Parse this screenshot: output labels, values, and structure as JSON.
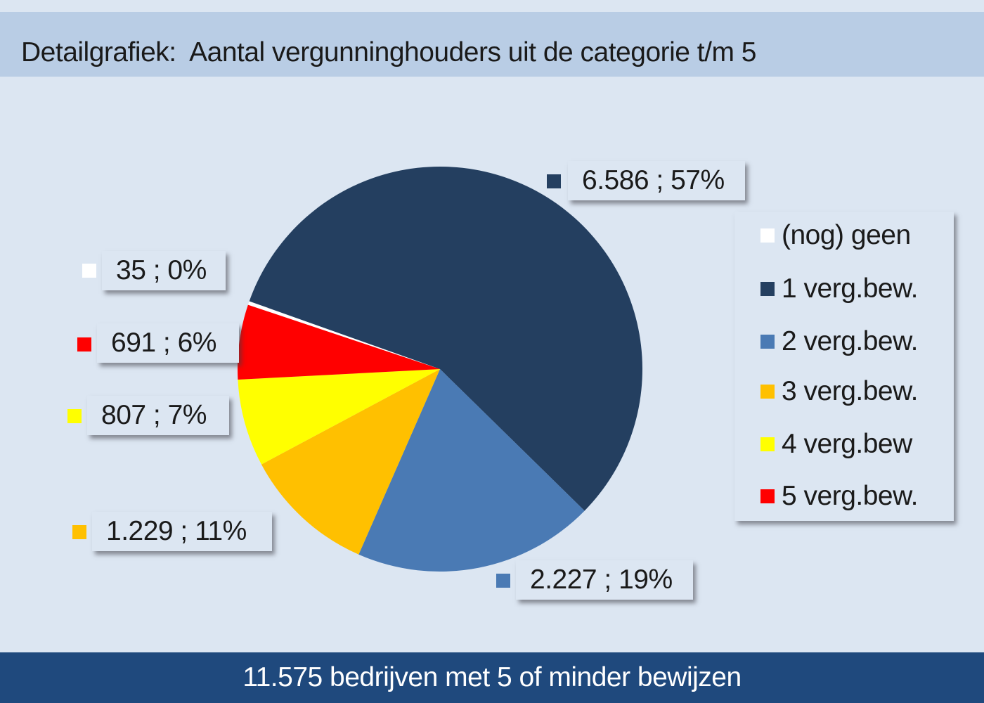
{
  "header": {
    "title": "Detailgrafiek:  Aantal vergunninghouders uit de categorie t/m 5"
  },
  "footer": {
    "summary": "11.575 bedrijven met 5 of minder bewijzen"
  },
  "colors": {
    "background": "#dce6f2",
    "title_bar": "#b9cde5",
    "footer_bar": "#1f497d"
  },
  "chart_data": {
    "type": "pie",
    "title": "Detailgrafiek:  Aantal vergunninghouders uit de categorie t/m 5",
    "total_label": "11.575 bedrijven met 5 of minder bewijzen",
    "total": 11575,
    "start_angle_deg": -161.5,
    "direction": "clockwise",
    "legend_position": "right",
    "categories": [
      "(nog) geen",
      "1 verg.bew.",
      "2 verg.bew.",
      "3 verg.bew.",
      "4 verg.bew",
      "5 verg.bew."
    ],
    "values": [
      35,
      6586,
      2227,
      1229,
      807,
      691
    ],
    "percentages": [
      0,
      57,
      19,
      11,
      7,
      6
    ],
    "colors": [
      "#ffffff",
      "#243f60",
      "#4a7ab4",
      "#ffc000",
      "#ffff00",
      "#ff0000"
    ],
    "data_labels": [
      "35 ; 0%",
      "6.586 ; 57%",
      "2.227 ; 19%",
      "1.229 ; 11%",
      "807 ; 7%",
      "691 ; 6%"
    ]
  },
  "labels": [
    {
      "text": "35 ; 0%",
      "color": "#ffffff"
    },
    {
      "text": "6.586 ; 57%",
      "color": "#243f60"
    },
    {
      "text": "2.227 ; 19%",
      "color": "#4a7ab4"
    },
    {
      "text": "1.229 ; 11%",
      "color": "#ffc000"
    },
    {
      "text": "807 ; 7%",
      "color": "#ffff00"
    },
    {
      "text": "691 ; 6%",
      "color": "#ff0000"
    }
  ],
  "legend": {
    "items": [
      {
        "label": "(nog) geen",
        "color": "#ffffff"
      },
      {
        "label": "1 verg.bew.",
        "color": "#243f60"
      },
      {
        "label": "2 verg.bew.",
        "color": "#4a7ab4"
      },
      {
        "label": "3 verg.bew.",
        "color": "#ffc000"
      },
      {
        "label": "4 verg.bew",
        "color": "#ffff00"
      },
      {
        "label": "5 verg.bew.",
        "color": "#ff0000"
      }
    ]
  }
}
